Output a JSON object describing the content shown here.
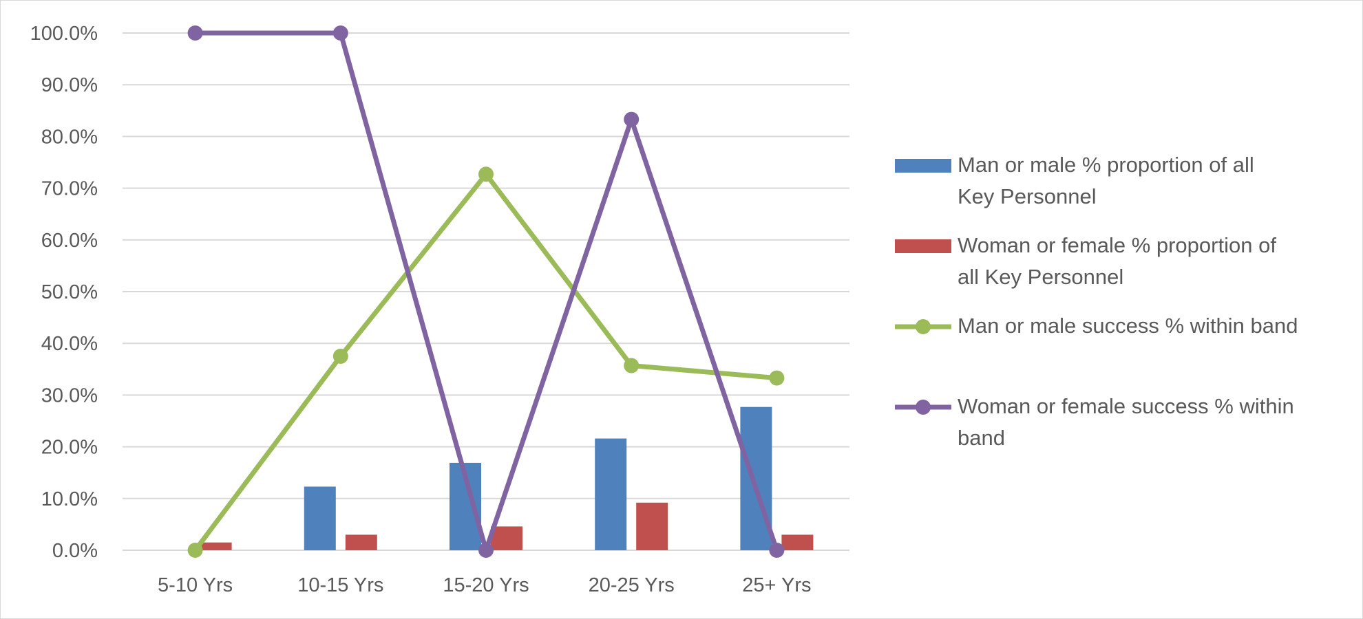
{
  "chart_data": {
    "type": "bar",
    "categories": [
      "5-10 Yrs",
      "10-15 Yrs",
      "15-20 Yrs",
      "20-25 Yrs",
      "25+ Yrs"
    ],
    "ylim": [
      0,
      100
    ],
    "yticks": [
      "0.0%",
      "10.0%",
      "20.0%",
      "30.0%",
      "40.0%",
      "50.0%",
      "60.0%",
      "70.0%",
      "80.0%",
      "90.0%",
      "100.0%"
    ],
    "grid": true,
    "legend_position": "right",
    "series": [
      {
        "name": "Man or male % proportion of all Key Personnel",
        "legend_lines": [
          "Man or male % proportion of all",
          "Key Personnel"
        ],
        "kind": "bar",
        "color": "#4f81bd",
        "values": [
          0,
          12.3,
          16.9,
          21.6,
          27.7
        ]
      },
      {
        "name": "Woman or female % proportion of all Key Personnel",
        "legend_lines": [
          "Woman or female % proportion of",
          "all Key Personnel"
        ],
        "kind": "bar",
        "color": "#c0504d",
        "values": [
          1.5,
          3.0,
          4.6,
          9.2,
          3.0
        ]
      },
      {
        "name": "Man or male success % within band",
        "legend_lines": [
          "Man or male success % within band"
        ],
        "kind": "line",
        "color": "#9bbb59",
        "values": [
          0,
          37.5,
          72.7,
          35.7,
          33.3
        ]
      },
      {
        "name": "Woman or female success % within band",
        "legend_lines": [
          "Woman or female success % within",
          "band"
        ],
        "kind": "line",
        "color": "#8064a2",
        "values": [
          100,
          100,
          0,
          83.3,
          0
        ]
      }
    ]
  }
}
